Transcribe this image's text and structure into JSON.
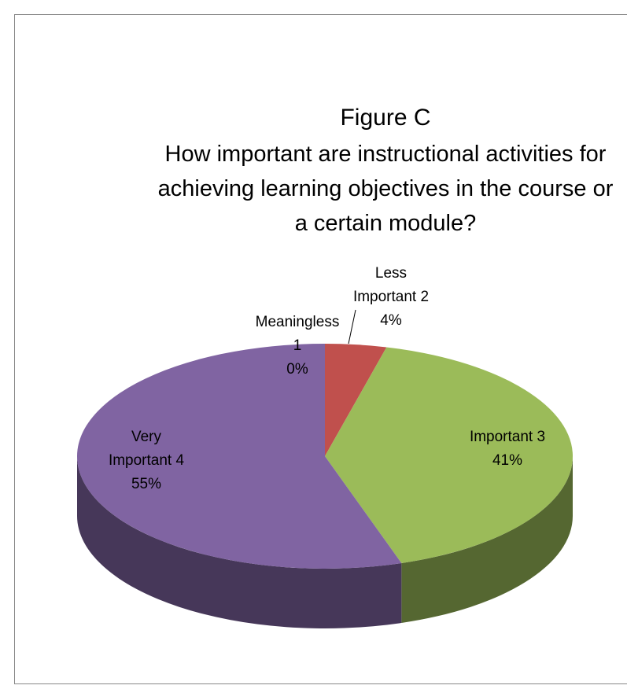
{
  "chart_data": {
    "type": "pie",
    "title": "Figure C",
    "subtitle": "How important are instructional activities for achieving learning objectives in the course or a certain module?",
    "categories": [
      "Meaningless 1",
      "Less Important 2",
      "Important 3",
      "Very Important 4"
    ],
    "values": [
      0,
      4,
      41,
      55
    ],
    "value_labels": [
      "0%",
      "4%",
      "41%",
      "55%"
    ],
    "colors": [
      "#4f81bd",
      "#c0504d",
      "#9bbb59",
      "#8064a2"
    ]
  }
}
